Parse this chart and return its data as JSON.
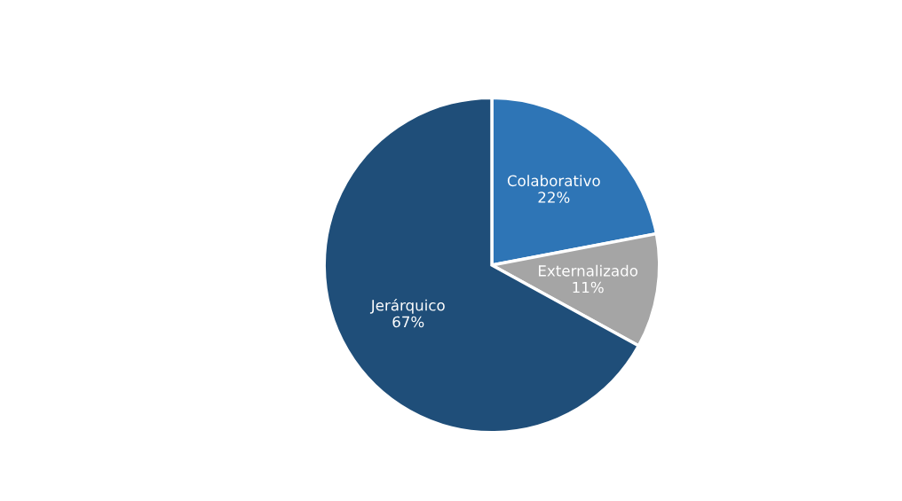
{
  "chart_data": {
    "type": "pie",
    "categories": [
      "Colaborativo",
      "Externalizado",
      "Jerárquico"
    ],
    "values": [
      22,
      11,
      67
    ],
    "colors": [
      "#2e75b6",
      "#a5a5a5",
      "#1f4e79"
    ],
    "value_labels": [
      "22%",
      "11%",
      "67%"
    ],
    "legend": false
  }
}
